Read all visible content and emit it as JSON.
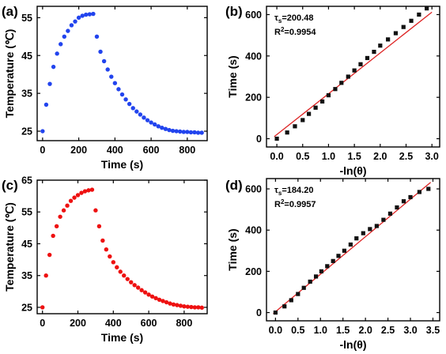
{
  "panels": [
    {
      "id": "a",
      "label": "(a)"
    },
    {
      "id": "b",
      "label": "(b)"
    },
    {
      "id": "c",
      "label": "(c)"
    },
    {
      "id": "d",
      "label": "(d)"
    }
  ],
  "chart_data": [
    {
      "id": "a",
      "type": "scatter",
      "panel_label": "(a)",
      "xlabel": "Time (s)",
      "ylabel": "Temperature (℃)",
      "xlim": [
        -30,
        910
      ],
      "ylim": [
        22.5,
        58
      ],
      "xticks": [
        0,
        200,
        400,
        600,
        800
      ],
      "yticks": [
        25,
        35,
        45,
        55
      ],
      "marker_color": "#2244ee",
      "series": [
        {
          "x": [
            0,
            20,
            40,
            60,
            80,
            100,
            120,
            140,
            160,
            180,
            200,
            220,
            240,
            260,
            280,
            300,
            320,
            340,
            360,
            380,
            400,
            420,
            440,
            460,
            480,
            500,
            520,
            540,
            560,
            580,
            600,
            620,
            640,
            660,
            680,
            700,
            720,
            740,
            760,
            780,
            800,
            820,
            840,
            860,
            880
          ],
          "y": [
            25,
            32,
            37.5,
            42,
            45.5,
            48,
            50,
            51.5,
            53,
            54,
            55,
            55.5,
            55.8,
            55.9,
            56,
            50,
            46,
            43.5,
            41.3,
            39.4,
            37.7,
            36.1,
            34.7,
            33.4,
            32.2,
            31.1,
            30.2,
            29.4,
            28.6,
            27.9,
            27.3,
            26.8,
            26.3,
            25.9,
            25.6,
            25.3,
            25.1,
            25,
            24.9,
            24.8,
            24.8,
            24.7,
            24.7,
            24.6,
            24.6
          ]
        }
      ]
    },
    {
      "id": "b",
      "type": "scatter",
      "panel_label": "(b)",
      "xlabel": "-ln(θ)",
      "ylabel": "Time (s)",
      "xlim": [
        -0.2,
        3.15
      ],
      "ylim": [
        -40,
        640
      ],
      "xticks": [
        "0.0",
        "0.5",
        "1.0",
        "1.5",
        "2.0",
        "2.5",
        "3.0"
      ],
      "yticks": [
        0,
        200,
        400,
        600
      ],
      "annotation_tau_symbol": "τ",
      "annotation_tau_subscript": "s",
      "annotation_tau_value": "=200.48",
      "annotation_r2_main": "R",
      "annotation_r2_sup": "2",
      "annotation_r2_value": "=0.9954",
      "marker_color": "#111111",
      "fit_color": "#dd2222",
      "fit_line": {
        "x": [
          -0.05,
          3.0
        ],
        "y": [
          10,
          612
        ]
      },
      "series": [
        {
          "x": [
            0.0,
            0.2,
            0.35,
            0.5,
            0.62,
            0.75,
            0.88,
            1.0,
            1.13,
            1.25,
            1.38,
            1.5,
            1.62,
            1.75,
            1.88,
            2.0,
            2.15,
            2.3,
            2.45,
            2.6,
            2.75,
            2.9
          ],
          "y": [
            0,
            30,
            60,
            90,
            120,
            150,
            180,
            210,
            240,
            270,
            300,
            330,
            360,
            390,
            420,
            450,
            480,
            510,
            540,
            570,
            600,
            630
          ]
        }
      ]
    },
    {
      "id": "c",
      "type": "scatter",
      "panel_label": "(c)",
      "xlabel": "Time (s)",
      "ylabel": "Temperature (℃)",
      "xlim": [
        -30,
        930
      ],
      "ylim": [
        23,
        65
      ],
      "xticks": [
        0,
        200,
        400,
        600,
        800
      ],
      "yticks": [
        25,
        35,
        45,
        55,
        65
      ],
      "marker_color": "#ee1111",
      "series": [
        {
          "x": [
            0,
            20,
            40,
            60,
            80,
            100,
            120,
            140,
            160,
            180,
            200,
            220,
            240,
            260,
            280,
            300,
            320,
            340,
            360,
            380,
            400,
            420,
            440,
            460,
            480,
            500,
            520,
            540,
            560,
            580,
            600,
            620,
            640,
            660,
            680,
            700,
            720,
            740,
            760,
            780,
            800,
            820,
            840,
            860,
            880,
            900
          ],
          "y": [
            25,
            35,
            41.5,
            47.5,
            50.5,
            53.5,
            55.5,
            57,
            58.5,
            59.5,
            60.3,
            61,
            61.5,
            61.8,
            62,
            55.5,
            50.5,
            46,
            43.2,
            41,
            39.2,
            37.6,
            36.2,
            35,
            33.9,
            32.9,
            32,
            31.2,
            30.4,
            29.7,
            29,
            28.4,
            27.9,
            27.4,
            27,
            26.6,
            26.2,
            25.9,
            25.7,
            25.5,
            25.3,
            25.2,
            25.1,
            25,
            25,
            24.9
          ]
        }
      ]
    },
    {
      "id": "d",
      "type": "scatter",
      "panel_label": "(d)",
      "xlabel": "-ln(θ)",
      "ylabel": "Time (s)",
      "xlim": [
        -0.2,
        3.65
      ],
      "ylim": [
        -40,
        650
      ],
      "xticks": [
        "0.0",
        "0.5",
        "1.0",
        "1.5",
        "2.0",
        "2.5",
        "3.0",
        "3.5"
      ],
      "yticks": [
        0,
        200,
        400,
        600
      ],
      "annotation_tau_symbol": "τ",
      "annotation_tau_subscript": "s",
      "annotation_tau_value": "=184.20",
      "annotation_r2_main": "R",
      "annotation_r2_sup": "2",
      "annotation_r2_value": "=0.9957",
      "marker_color": "#111111",
      "fit_color": "#dd2222",
      "fit_line": {
        "x": [
          -0.05,
          3.45
        ],
        "y": [
          -5,
          632
        ]
      },
      "series": [
        {
          "x": [
            0.0,
            0.2,
            0.35,
            0.5,
            0.63,
            0.77,
            0.9,
            1.02,
            1.15,
            1.28,
            1.4,
            1.53,
            1.67,
            1.8,
            1.95,
            2.1,
            2.25,
            2.4,
            2.55,
            2.7,
            2.85,
            3.0,
            3.2,
            3.4
          ],
          "y": [
            0,
            30,
            60,
            90,
            120,
            150,
            175,
            200,
            225,
            250,
            275,
            300,
            330,
            360,
            385,
            405,
            420,
            450,
            480,
            510,
            540,
            560,
            585,
            600
          ]
        }
      ]
    }
  ]
}
